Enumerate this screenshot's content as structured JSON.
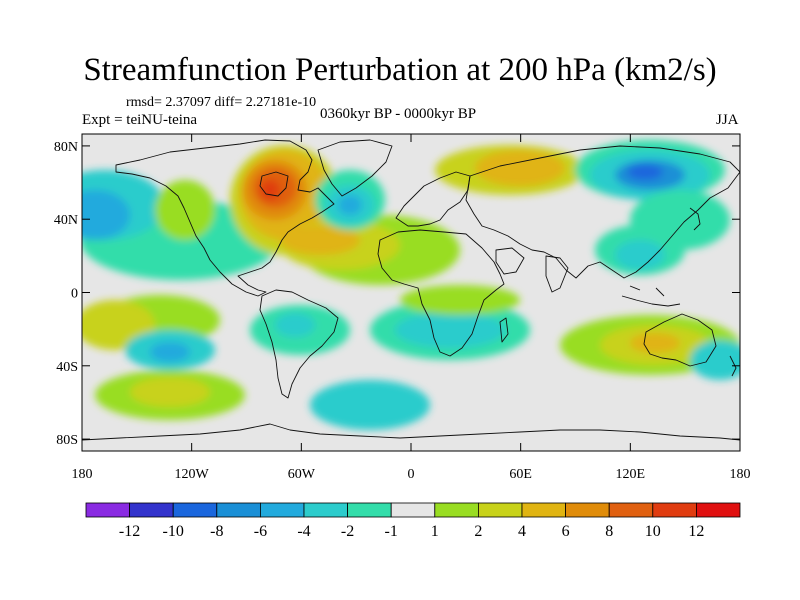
{
  "title": "Streamfunction Perturbation at 200 hPa (km2/s)",
  "stats_text": "rmsd= 2.37097  diff= 2.27181e-10",
  "experiment_text": "Expt = teiNU-teina",
  "period_text": "0360kyr BP - 0000kyr BP",
  "season_text": "JJA",
  "map": {
    "lat_ticks": [
      {
        "value": 80,
        "label": "80N"
      },
      {
        "value": 40,
        "label": "40N"
      },
      {
        "value": 0,
        "label": "0"
      },
      {
        "value": -40,
        "label": "40S"
      },
      {
        "value": -80,
        "label": "80S"
      }
    ],
    "lon_ticks": [
      {
        "value": -180,
        "label": "180"
      },
      {
        "value": -120,
        "label": "120W"
      },
      {
        "value": -60,
        "label": "60W"
      },
      {
        "value": 0,
        "label": "0"
      },
      {
        "value": 60,
        "label": "60E"
      },
      {
        "value": 120,
        "label": "120E"
      },
      {
        "value": 180,
        "label": "180"
      }
    ]
  },
  "colorbar": {
    "colors": [
      "#8a2be2",
      "#3333cc",
      "#1a66dd",
      "#1a8fd6",
      "#22aadd",
      "#2ccccc",
      "#33ddaa",
      "#e6e6e6",
      "#99dd22",
      "#c8d21a",
      "#e0b412",
      "#e08c0a",
      "#e06010",
      "#e03c10",
      "#e01010"
    ],
    "labels": [
      "-12",
      "-10",
      "-8",
      "-6",
      "-4",
      "-2",
      "-1",
      "1",
      "2",
      "4",
      "6",
      "8",
      "10",
      "12"
    ]
  },
  "field": {
    "background": "#e6e6e6",
    "colors": {
      "neg5": "#1a66dd",
      "neg4": "#1a8fd6",
      "neg3": "#22aadd",
      "neg2": "#2ccccc",
      "neg1": "#33ddaa",
      "pos1": "#99dd22",
      "pos2": "#c8d21a",
      "pos3": "#e0b412",
      "pos4": "#e08c0a",
      "pos5": "#e06010",
      "pos6": "#e03c10"
    }
  }
}
